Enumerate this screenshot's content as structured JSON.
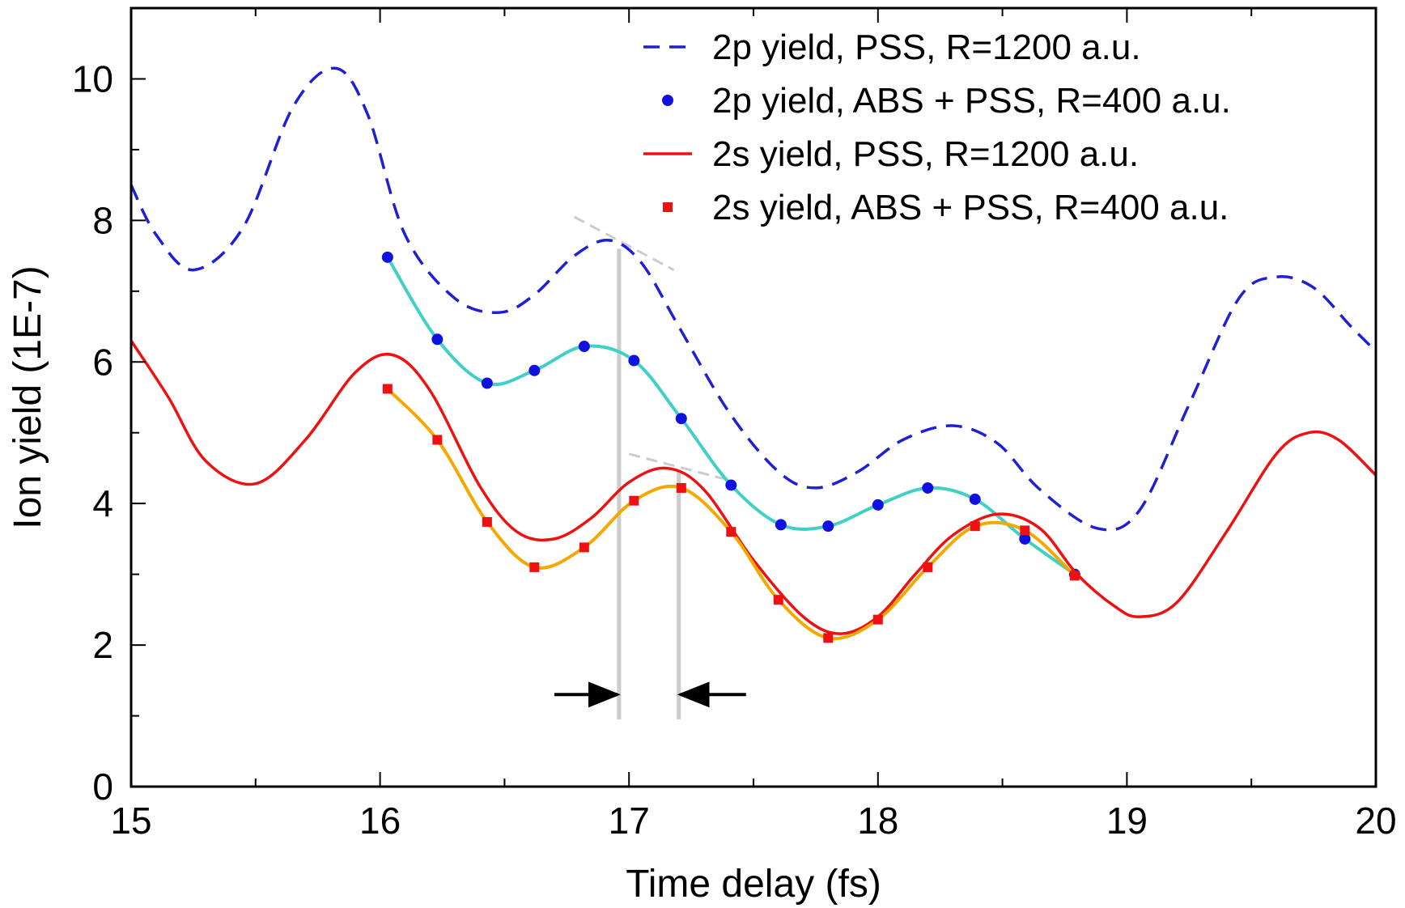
{
  "chart_data": {
    "type": "line",
    "title": "",
    "xlabel": "Time delay (fs)",
    "ylabel": "Ion yield (1E-7)",
    "xlim": [
      15,
      20
    ],
    "ylim": [
      0,
      11
    ],
    "xticks": [
      15,
      16,
      17,
      18,
      19,
      20
    ],
    "xtick_labels": [
      "15",
      "16",
      "17",
      "18",
      "19",
      "20"
    ],
    "yticks": [
      0,
      2,
      4,
      6,
      8,
      10
    ],
    "ytick_labels": [
      "0",
      "2",
      "4",
      "6",
      "8",
      "10"
    ],
    "legend_position": "top-right",
    "series": [
      {
        "name": "2p yield, PSS, R=1200 a.u.",
        "style": "dashed",
        "color": "#1f1fd6",
        "x": [
          15.0,
          15.1,
          15.25,
          15.45,
          15.65,
          15.82,
          15.95,
          16.1,
          16.3,
          16.48,
          16.62,
          16.78,
          16.92,
          17.05,
          17.2,
          17.4,
          17.6,
          17.75,
          17.92,
          18.1,
          18.3,
          18.48,
          18.65,
          18.88,
          19.05,
          19.25,
          19.45,
          19.6,
          19.75,
          19.9,
          20.0
        ],
        "y": [
          8.5,
          7.8,
          7.3,
          7.9,
          9.6,
          10.15,
          9.5,
          7.8,
          6.9,
          6.7,
          6.95,
          7.5,
          7.72,
          7.4,
          6.5,
          5.3,
          4.45,
          4.22,
          4.45,
          4.9,
          5.1,
          4.85,
          4.2,
          3.65,
          3.9,
          5.4,
          6.9,
          7.2,
          7.05,
          6.5,
          6.15
        ]
      },
      {
        "name": "2p yield, ABS + PSS, R=400 a.u.",
        "style": "markers",
        "marker": "circle",
        "color": "#1010e0",
        "line_color": "#40d0c8",
        "x": [
          16.03,
          16.23,
          16.43,
          16.62,
          16.82,
          17.02,
          17.21,
          17.41,
          17.61,
          17.8,
          18.0,
          18.2,
          18.39,
          18.59,
          18.79
        ],
        "y": [
          7.48,
          6.32,
          5.7,
          5.88,
          6.22,
          6.02,
          5.2,
          4.26,
          3.7,
          3.68,
          3.98,
          4.22,
          4.06,
          3.5,
          3.0
        ]
      },
      {
        "name": "2s yield, PSS, R=1200 a.u.",
        "style": "solid",
        "color": "#ee1111",
        "x": [
          15.0,
          15.15,
          15.3,
          15.5,
          15.7,
          15.9,
          16.05,
          16.2,
          16.4,
          16.55,
          16.7,
          16.85,
          17.0,
          17.15,
          17.3,
          17.5,
          17.7,
          17.85,
          18.0,
          18.15,
          18.3,
          18.48,
          18.65,
          18.8,
          18.95,
          19.05,
          19.2,
          19.4,
          19.6,
          19.73,
          19.85,
          20.0
        ],
        "y": [
          6.3,
          5.5,
          4.6,
          4.28,
          4.9,
          5.85,
          6.1,
          5.6,
          4.25,
          3.6,
          3.5,
          3.8,
          4.3,
          4.5,
          4.2,
          3.2,
          2.4,
          2.16,
          2.4,
          3.0,
          3.55,
          3.85,
          3.65,
          3.0,
          2.55,
          2.4,
          2.6,
          3.6,
          4.7,
          5.0,
          4.9,
          4.4
        ]
      },
      {
        "name": "2s yield, ABS + PSS, R=400 a.u.",
        "style": "markers",
        "marker": "square",
        "color": "#ee1111",
        "line_color": "#f5a800",
        "x": [
          16.03,
          16.23,
          16.43,
          16.62,
          16.82,
          17.02,
          17.21,
          17.41,
          17.6,
          17.8,
          18.0,
          18.2,
          18.39,
          18.59,
          18.79
        ],
        "y": [
          5.62,
          4.9,
          3.74,
          3.1,
          3.38,
          4.04,
          4.22,
          3.6,
          2.64,
          2.1,
          2.36,
          3.1,
          3.68,
          3.62,
          2.98
        ]
      }
    ],
    "annotations": [
      {
        "type": "vertical-line",
        "x": 16.96,
        "y_range": [
          0.95,
          7.6
        ]
      },
      {
        "type": "vertical-line",
        "x": 17.2,
        "y_range": [
          0.95,
          4.45
        ]
      },
      {
        "type": "dashed-tangent",
        "x_range": [
          16.78,
          17.18
        ],
        "y_range": [
          8.05,
          7.3
        ]
      },
      {
        "type": "dashed-tangent",
        "x_range": [
          17.0,
          17.38
        ],
        "y_range": [
          4.7,
          4.35
        ]
      },
      {
        "type": "arrow",
        "from_x": 16.7,
        "to_x": 16.96,
        "y": 1.3
      },
      {
        "type": "arrow",
        "from_x": 17.47,
        "to_x": 17.2,
        "y": 1.3
      }
    ]
  }
}
